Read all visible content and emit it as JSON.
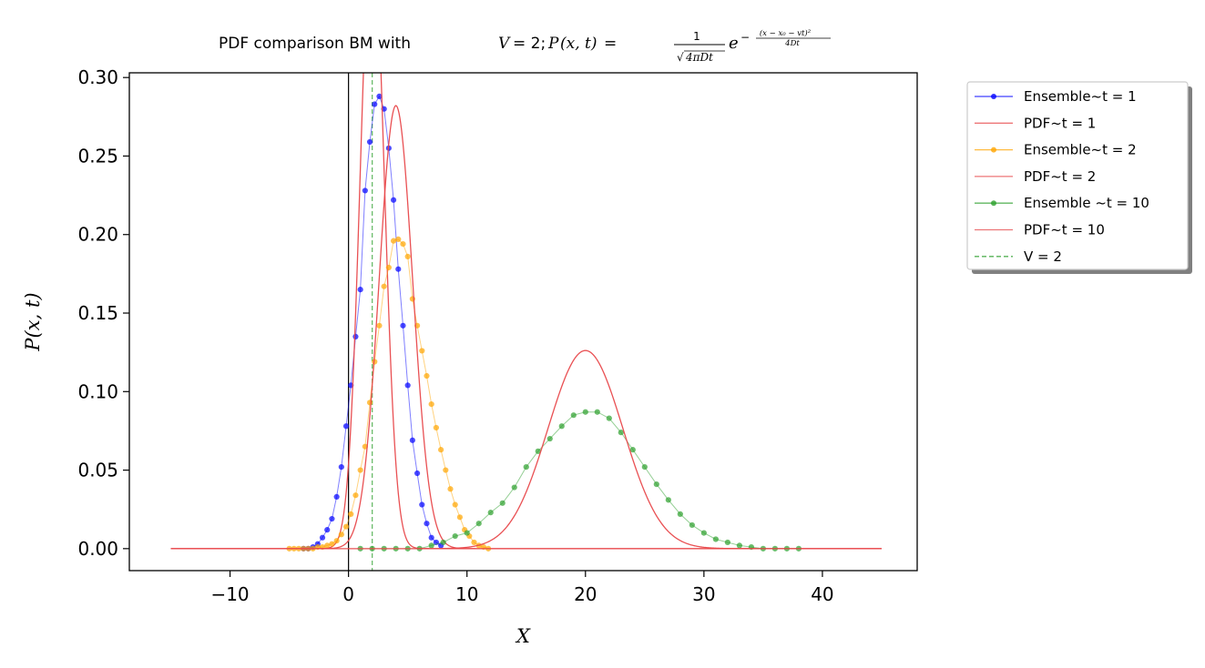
{
  "chart_data": {
    "type": "line",
    "title": {
      "prefix": "PDF comparison BM with ",
      "math": "V = 2; P(x, t) = (1/√(4πDt)) e^(−(x − x₀ − vt)²/(4Dt))"
    },
    "xlabel": "X",
    "ylabel": "P(x, t)",
    "xlim": [
      -18.5,
      48
    ],
    "ylim": [
      -0.014,
      0.303
    ],
    "xticks": [
      -10,
      0,
      10,
      20,
      30,
      40
    ],
    "yticks": [
      0.0,
      0.05,
      0.1,
      0.15,
      0.2,
      0.25,
      0.3
    ],
    "xtick_labels": [
      "−10",
      "0",
      "10",
      "20",
      "30",
      "40"
    ],
    "ytick_labels": [
      "0.00",
      "0.05",
      "0.10",
      "0.15",
      "0.20",
      "0.25",
      "0.30"
    ],
    "grid": false,
    "legend_position": "outside-right",
    "zero_line": {
      "axis": "x",
      "value": 0,
      "color": "#000000"
    },
    "model": {
      "velocity": 2,
      "x0": 0,
      "D": 0.5
    },
    "pdf_x_range": [
      -15,
      45
    ],
    "vline": {
      "name": "V = 2",
      "x": 2,
      "color": "#2ca02c",
      "style": "dashed"
    },
    "series": [
      {
        "name": "Ensemble~t = 1",
        "kind": "ensemble",
        "t": 1,
        "color": "#0000ff",
        "x": [
          -3.8,
          -3.4,
          -3.0,
          -2.6,
          -2.2,
          -1.8,
          -1.4,
          -1.0,
          -0.6,
          -0.2,
          0.2,
          0.6,
          1.0,
          1.4,
          1.8,
          2.2,
          2.6,
          3.0,
          3.4,
          3.8,
          4.2,
          4.6,
          5.0,
          5.4,
          5.8,
          6.2,
          6.6,
          7.0,
          7.4,
          7.8
        ],
        "y": [
          0.0,
          0.0,
          0.001,
          0.003,
          0.007,
          0.012,
          0.019,
          0.033,
          0.052,
          0.078,
          0.104,
          0.135,
          0.165,
          0.228,
          0.259,
          0.283,
          0.288,
          0.28,
          0.255,
          0.222,
          0.178,
          0.142,
          0.104,
          0.069,
          0.048,
          0.028,
          0.016,
          0.007,
          0.004,
          0.002
        ]
      },
      {
        "name": "PDF~t = 1",
        "kind": "pdf",
        "t": 1,
        "color": "#e8474a"
      },
      {
        "name": "Ensemble~t = 2",
        "kind": "ensemble",
        "t": 2,
        "color": "#ffa500",
        "x": [
          -5.0,
          -4.6,
          -4.2,
          -3.8,
          -3.4,
          -3.0,
          -2.6,
          -2.2,
          -1.8,
          -1.4,
          -1.0,
          -0.6,
          -0.2,
          0.2,
          0.6,
          1.0,
          1.4,
          1.8,
          2.2,
          2.6,
          3.0,
          3.4,
          3.8,
          4.2,
          4.6,
          5.0,
          5.4,
          5.8,
          6.2,
          6.6,
          7.0,
          7.4,
          7.8,
          8.2,
          8.6,
          9.0,
          9.4,
          9.8,
          10.2,
          10.6,
          11.0,
          11.4,
          11.8
        ],
        "y": [
          0.0,
          0.0,
          0.0,
          0.0,
          0.0,
          0.0,
          0.001,
          0.001,
          0.002,
          0.003,
          0.005,
          0.009,
          0.014,
          0.022,
          0.034,
          0.05,
          0.065,
          0.093,
          0.119,
          0.142,
          0.167,
          0.179,
          0.196,
          0.197,
          0.194,
          0.186,
          0.159,
          0.142,
          0.126,
          0.11,
          0.092,
          0.077,
          0.063,
          0.05,
          0.038,
          0.028,
          0.02,
          0.012,
          0.008,
          0.004,
          0.002,
          0.001,
          0.0
        ]
      },
      {
        "name": "PDF~t = 2",
        "kind": "pdf",
        "t": 2,
        "color": "#e8474a"
      },
      {
        "name": "Ensemble ~t = 10",
        "kind": "ensemble",
        "t": 10,
        "color": "#2ca02c",
        "x": [
          1.0,
          2.0,
          3.0,
          4.0,
          5.0,
          6.0,
          7.0,
          8.0,
          9.0,
          10.0,
          11.0,
          12.0,
          13.0,
          14.0,
          15.0,
          16.0,
          17.0,
          18.0,
          19.0,
          20.0,
          21.0,
          22.0,
          23.0,
          24.0,
          25.0,
          26.0,
          27.0,
          28.0,
          29.0,
          30.0,
          31.0,
          32.0,
          33.0,
          34.0,
          35.0,
          36.0,
          37.0,
          38.0
        ],
        "y": [
          0.0,
          0.0,
          0.0,
          0.0,
          0.0,
          0.0,
          0.002,
          0.004,
          0.008,
          0.01,
          0.016,
          0.023,
          0.029,
          0.039,
          0.052,
          0.062,
          0.07,
          0.078,
          0.085,
          0.087,
          0.087,
          0.083,
          0.074,
          0.063,
          0.052,
          0.041,
          0.031,
          0.022,
          0.015,
          0.01,
          0.006,
          0.004,
          0.002,
          0.001,
          0.0,
          0.0,
          0.0,
          0.0
        ]
      },
      {
        "name": "PDF~t = 10",
        "kind": "pdf",
        "t": 10,
        "color": "#e8474a"
      }
    ],
    "legend": [
      {
        "label": "Ensemble~t = 1",
        "color": "#0000ff",
        "marker": "dot",
        "style": "solid"
      },
      {
        "label": "PDF~t = 1",
        "color": "#e8474a",
        "marker": "none",
        "style": "solid"
      },
      {
        "label": "Ensemble~t = 2",
        "color": "#ffa500",
        "marker": "dot",
        "style": "solid"
      },
      {
        "label": "PDF~t = 2",
        "color": "#e8474a",
        "marker": "none",
        "style": "solid"
      },
      {
        "label": "Ensemble ~t = 10",
        "color": "#2ca02c",
        "marker": "dot",
        "style": "solid"
      },
      {
        "label": "PDF~t = 10",
        "color": "#e8474a",
        "marker": "none",
        "style": "solid"
      },
      {
        "label": "V = 2",
        "color": "#2ca02c",
        "marker": "none",
        "style": "dashed"
      }
    ]
  }
}
